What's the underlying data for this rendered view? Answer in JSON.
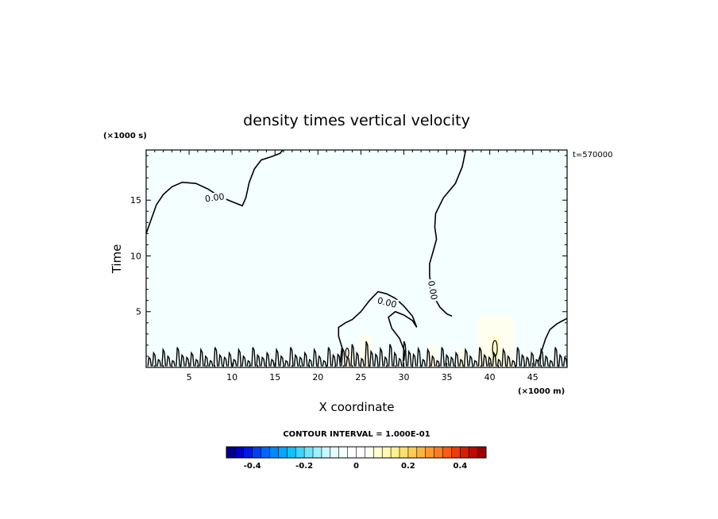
{
  "chart_data": {
    "type": "contour",
    "title": "density times vertical velocity",
    "xlabel": "X coordinate",
    "ylabel": "Time",
    "x_unit": "(×1000 m)",
    "y_unit": "(×1000 s)",
    "time_label": "t=570000",
    "xlim": [
      0,
      49
    ],
    "ylim": [
      0,
      19.5
    ],
    "x_ticks": [
      5,
      10,
      15,
      20,
      25,
      30,
      35,
      40,
      45
    ],
    "y_ticks": [
      5,
      10,
      15
    ],
    "contour_labels": [
      "0.00",
      "0.00",
      "0.00"
    ],
    "zero_contour": {
      "upper_boundary": [
        [
          0,
          12.0
        ],
        [
          0.6,
          13.3
        ],
        [
          1.2,
          14.6
        ],
        [
          2.0,
          15.5
        ],
        [
          3.0,
          16.2
        ],
        [
          4.2,
          16.6
        ],
        [
          5.8,
          16.5
        ],
        [
          7.2,
          16.0
        ],
        [
          8.6,
          15.3
        ],
        [
          10.2,
          14.8
        ],
        [
          11.2,
          14.5
        ],
        [
          11.6,
          15.2
        ],
        [
          12.0,
          16.6
        ],
        [
          12.6,
          17.8
        ],
        [
          13.4,
          18.6
        ],
        [
          14.6,
          18.9
        ],
        [
          15.6,
          19.2
        ],
        [
          15.9,
          19.5
        ]
      ],
      "right_boundary": [
        [
          37.2,
          19.5
        ],
        [
          36.8,
          18.0
        ],
        [
          36.0,
          16.5
        ],
        [
          34.6,
          15.2
        ],
        [
          33.7,
          13.8
        ],
        [
          33.6,
          12.6
        ],
        [
          33.8,
          11.5
        ],
        [
          33.4,
          10.4
        ],
        [
          33.0,
          9.3
        ],
        [
          33.0,
          8.2
        ],
        [
          33.2,
          7.2
        ],
        [
          33.6,
          6.2
        ],
        [
          34.2,
          5.4
        ],
        [
          35.0,
          4.8
        ],
        [
          35.6,
          4.6
        ]
      ],
      "central_lobe": [
        [
          22.6,
          0.4
        ],
        [
          22.8,
          1.8
        ],
        [
          22.4,
          2.8
        ],
        [
          22.4,
          3.6
        ],
        [
          23.2,
          4.0
        ],
        [
          24.0,
          4.3
        ],
        [
          25.0,
          5.0
        ],
        [
          26.0,
          6.0
        ],
        [
          27.0,
          6.8
        ],
        [
          28.0,
          6.6
        ],
        [
          29.0,
          6.2
        ],
        [
          30.0,
          5.5
        ],
        [
          31.0,
          4.6
        ],
        [
          31.5,
          3.6
        ],
        [
          31.0,
          4.2
        ],
        [
          30.0,
          4.7
        ],
        [
          29.0,
          5.0
        ],
        [
          28.2,
          4.5
        ],
        [
          28.6,
          3.5
        ],
        [
          29.5,
          2.6
        ],
        [
          30.1,
          1.4
        ],
        [
          30.0,
          0.6
        ]
      ],
      "right_edge": [
        [
          45.6,
          0.4
        ],
        [
          46.0,
          1.4
        ],
        [
          46.5,
          2.6
        ],
        [
          47.0,
          3.4
        ],
        [
          47.8,
          3.9
        ],
        [
          48.5,
          4.2
        ],
        [
          49,
          4.4
        ]
      ]
    },
    "fill_regions": [
      {
        "x": 22.8,
        "y": 0,
        "width": 1.4,
        "height": 1.8,
        "level": 0.05
      },
      {
        "x": 24.8,
        "y": 0,
        "width": 1.6,
        "height": 3.0,
        "level": 0.05
      },
      {
        "x": 32.6,
        "y": 0,
        "width": 1.4,
        "height": 2.0,
        "level": 0.05
      },
      {
        "x": 36.0,
        "y": 0,
        "width": 1.6,
        "height": 1.6,
        "level": 0.05
      },
      {
        "x": 38.6,
        "y": 0,
        "width": 4.2,
        "height": 4.6,
        "level": 0.05
      },
      {
        "x": 40.0,
        "y": 0.6,
        "width": 1.2,
        "height": 2.2,
        "level": 0.1
      }
    ],
    "colorbar": {
      "label": "CONTOUR INTERVAL = 1.000E-01",
      "min": -0.5,
      "max": 0.5,
      "tick_labels": [
        "-0.4",
        "-0.2",
        "0",
        "0.2",
        "0.4"
      ],
      "tick_values": [
        -0.4,
        -0.2,
        0,
        0.2,
        0.4
      ],
      "colors": [
        "#00008f",
        "#0000c0",
        "#0018e8",
        "#0040f4",
        "#0066ff",
        "#0088ff",
        "#00a8ff",
        "#10c0ff",
        "#40d4ff",
        "#70e4ff",
        "#a0f0ff",
        "#c8f8ff",
        "#e2fcff",
        "#f4ffff",
        "#ffffff",
        "#ffffff",
        "#fffff0",
        "#ffffd0",
        "#fff8b0",
        "#fff090",
        "#ffe070",
        "#ffcc50",
        "#ffb440",
        "#ff9830",
        "#ff7c20",
        "#ff5c10",
        "#f03c00",
        "#d81e00",
        "#bc0c00",
        "#9c0000"
      ]
    },
    "background_color": "#f4ffff"
  }
}
